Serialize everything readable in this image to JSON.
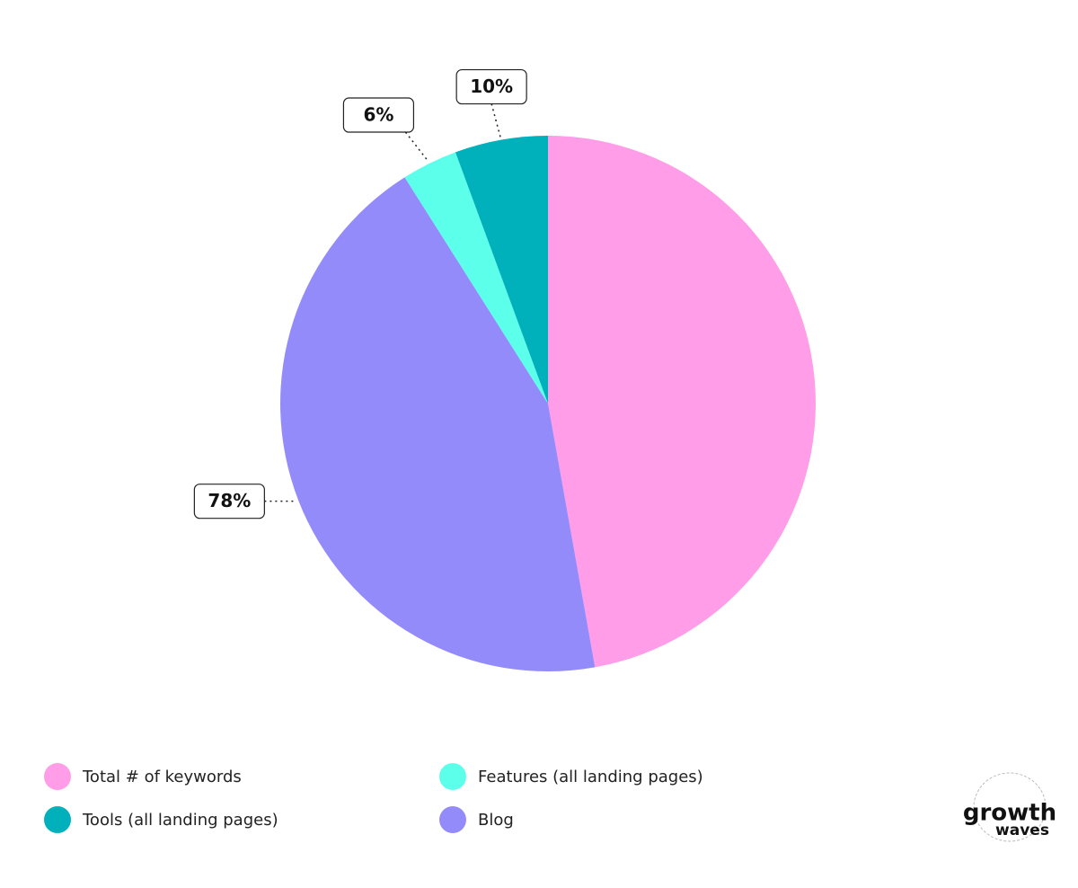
{
  "chart_data": {
    "type": "pie",
    "categories": [
      "Total # of keywords",
      "Blog",
      "Features (all landing pages)",
      "Tools (all landing pages)"
    ],
    "values": [
      84,
      78,
      6,
      10
    ],
    "value_labels": [
      null,
      "78%",
      "6%",
      "10%"
    ],
    "colors": [
      "#ff9de8",
      "#948bfa",
      "#5cffea",
      "#00b0bb"
    ],
    "legend": "bottom-left"
  },
  "logo": {
    "line1": "growth",
    "line2": "waves"
  }
}
